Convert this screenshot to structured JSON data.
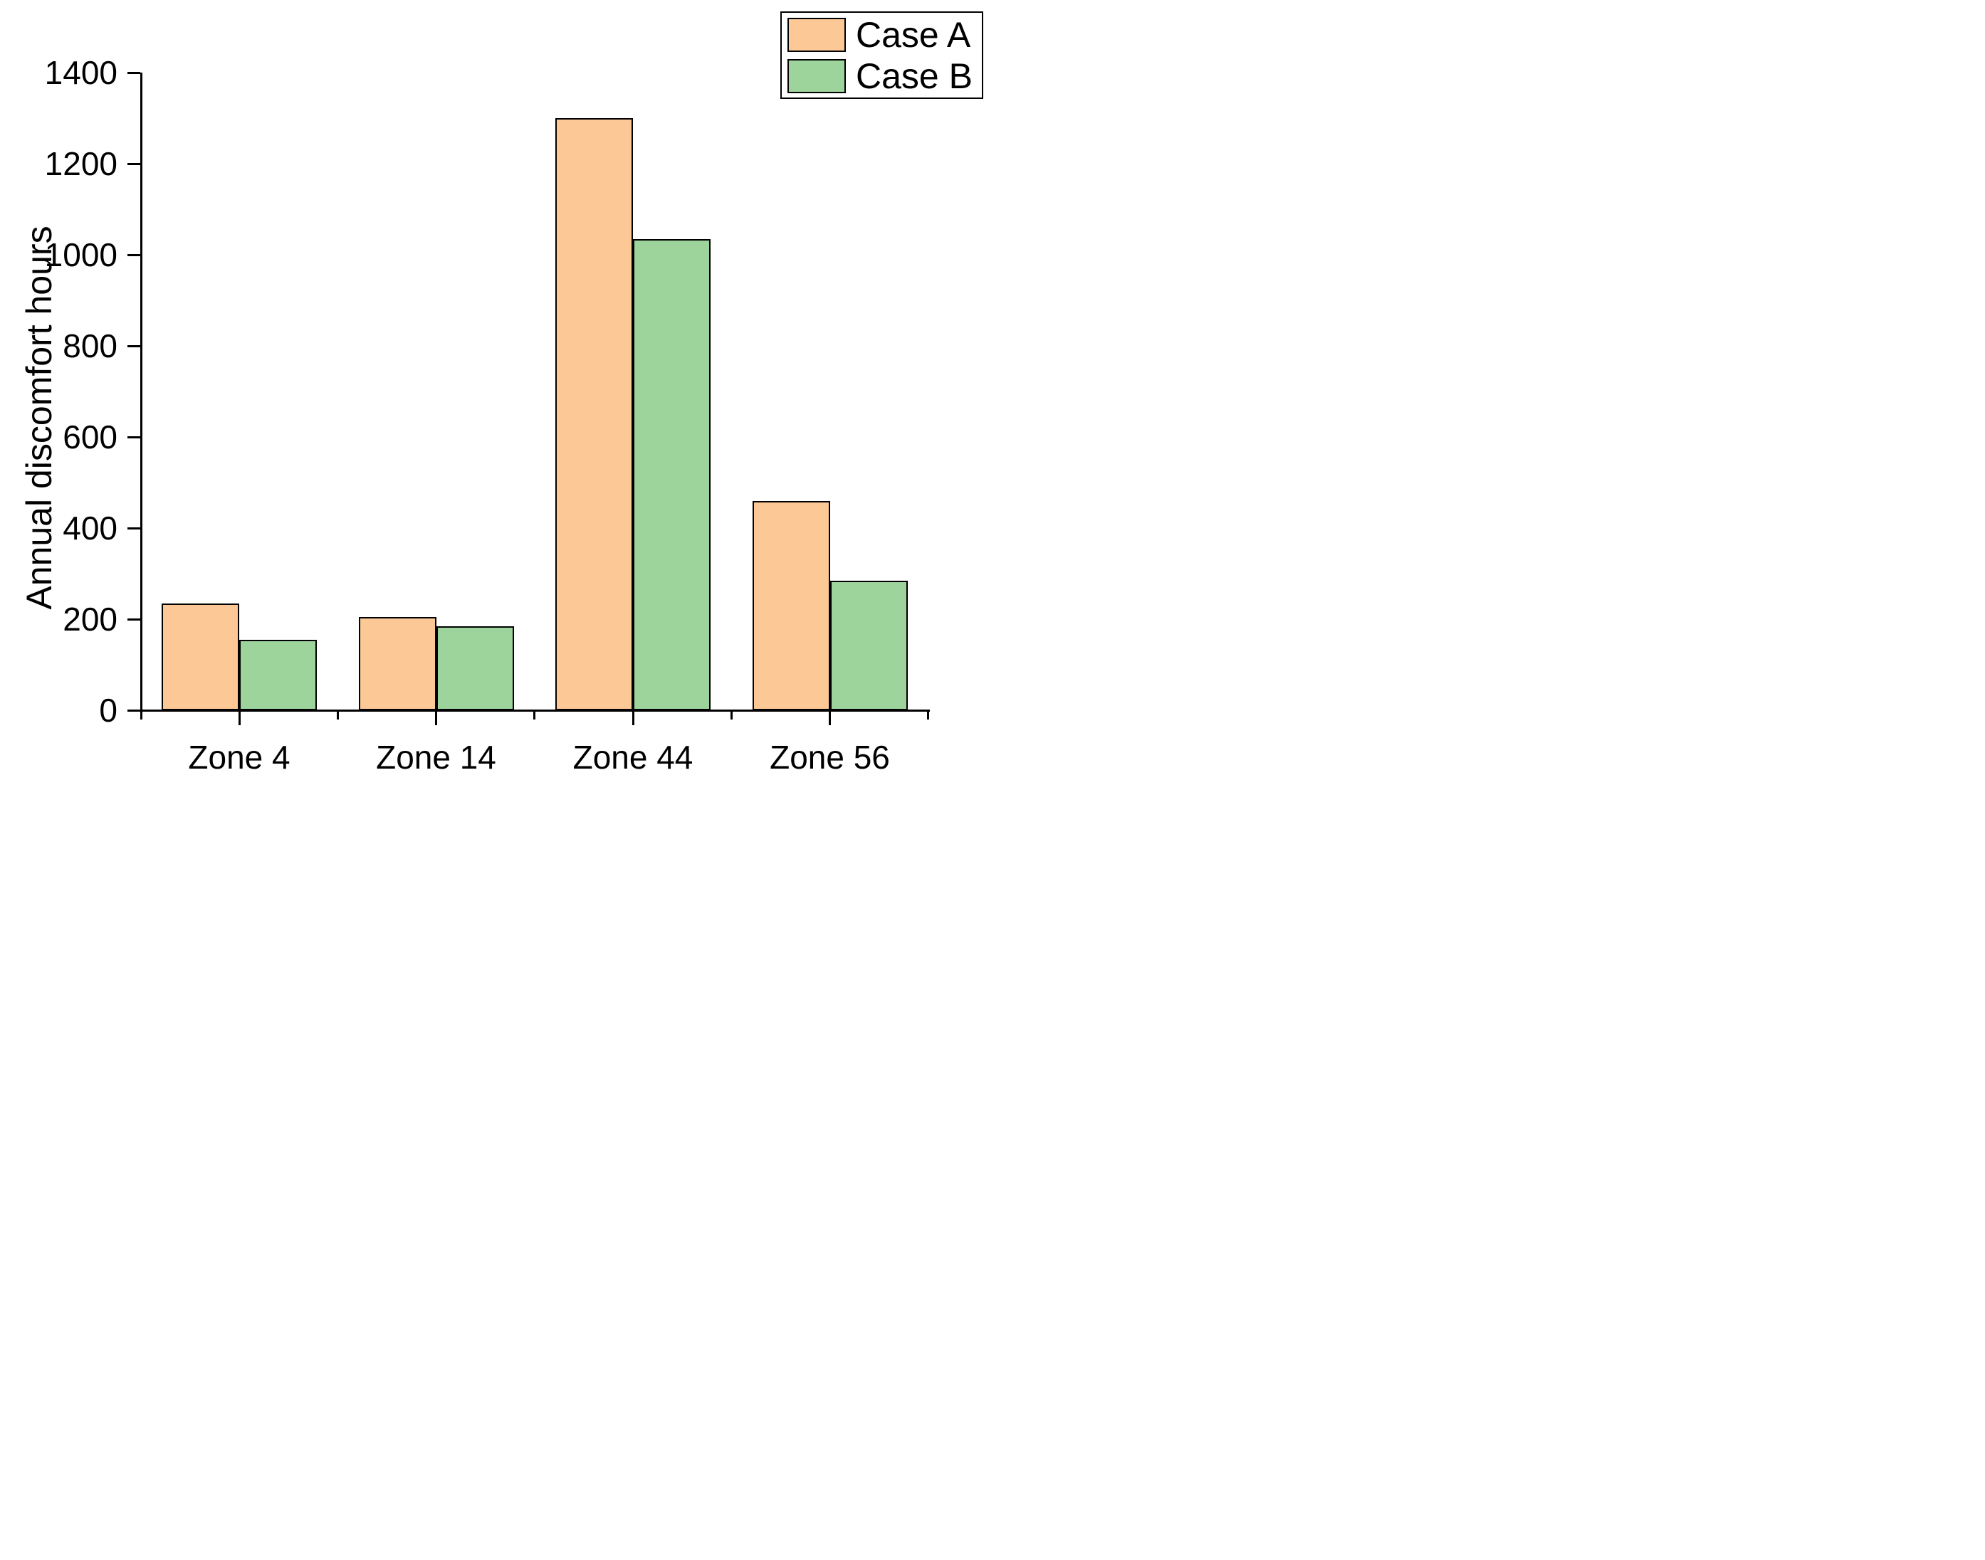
{
  "figure": {
    "background": "#ffffff",
    "axis_color": "#000000",
    "text_color": "#000000"
  },
  "chart_data": {
    "type": "bar",
    "title": "",
    "xlabel": "",
    "ylabel": "Annual discomfort hours",
    "categories": [
      "Zone 4",
      "Zone 14",
      "Zone 44",
      "Zone 56"
    ],
    "series": [
      {
        "name": "Case A",
        "color": "#FBC896",
        "border_color": "#000000",
        "values": [
          235,
          205,
          1300,
          460
        ]
      },
      {
        "name": "Case B",
        "color": "#9CD49C",
        "border_color": "#000000",
        "values": [
          155,
          185,
          1035,
          285
        ]
      }
    ],
    "ylim": [
      0,
      1400
    ],
    "yticks": [
      0,
      200,
      400,
      600,
      800,
      1000,
      1200,
      1400
    ],
    "grid": false,
    "legend_position": "top-right"
  }
}
